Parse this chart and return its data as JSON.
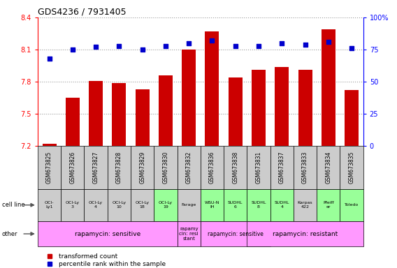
{
  "title": "GDS4236 / 7931405",
  "samples": [
    "GSM673825",
    "GSM673826",
    "GSM673827",
    "GSM673828",
    "GSM673829",
    "GSM673830",
    "GSM673832",
    "GSM673836",
    "GSM673838",
    "GSM673831",
    "GSM673837",
    "GSM673833",
    "GSM673834",
    "GSM673835"
  ],
  "bar_values": [
    7.22,
    7.65,
    7.81,
    7.79,
    7.73,
    7.86,
    8.1,
    8.27,
    7.84,
    7.91,
    7.94,
    7.91,
    8.29,
    7.72
  ],
  "scatter_values": [
    68,
    75,
    77,
    78,
    75,
    78,
    80,
    82,
    78,
    78,
    80,
    79,
    81,
    76
  ],
  "ylim_left": [
    7.2,
    8.4
  ],
  "ylim_right": [
    0,
    100
  ],
  "yticks_left": [
    7.2,
    7.5,
    7.8,
    8.1,
    8.4
  ],
  "yticks_right": [
    0,
    25,
    50,
    75,
    100
  ],
  "bar_color": "#cc0000",
  "scatter_color": "#0000cc",
  "bar_width": 0.6,
  "cell_line_labels": [
    "OCI-\nLy1",
    "OCI-Ly\n3",
    "OCI-Ly\n4",
    "OCI-Ly\n10",
    "OCI-Ly\n18",
    "OCI-Ly\n19",
    "Farage",
    "WSU-N\nIH",
    "SUDHL\n6",
    "SUDHL\n8",
    "SUDHL\n4",
    "Karpas\n422",
    "Pfeiff\ner",
    "Toledo"
  ],
  "cell_line_bg": [
    "#cccccc",
    "#cccccc",
    "#cccccc",
    "#cccccc",
    "#cccccc",
    "#99ff99",
    "#cccccc",
    "#99ff99",
    "#99ff99",
    "#99ff99",
    "#99ff99",
    "#cccccc",
    "#99ff99",
    "#99ff99"
  ],
  "other_spans": [
    {
      "start": 0,
      "end": 5,
      "label": "rapamycin: sensitive",
      "fontsize": 6.5
    },
    {
      "start": 6,
      "end": 6,
      "label": "rapamy\ncin: resi\nstant",
      "fontsize": 5.0
    },
    {
      "start": 7,
      "end": 9,
      "label": "rapamycin: sensitive",
      "fontsize": 5.5
    },
    {
      "start": 9,
      "end": 13,
      "label": "rapamycin: resistant",
      "fontsize": 6.5
    }
  ],
  "other_color": "#ff99ff",
  "legend_items": [
    {
      "label": "transformed count",
      "color": "#cc0000"
    },
    {
      "label": "percentile rank within the sample",
      "color": "#0000cc"
    }
  ],
  "row_label_cell_line": "cell line",
  "row_label_other": "other",
  "dotted_line_color": "#999999",
  "gsm_bg": "#cccccc"
}
